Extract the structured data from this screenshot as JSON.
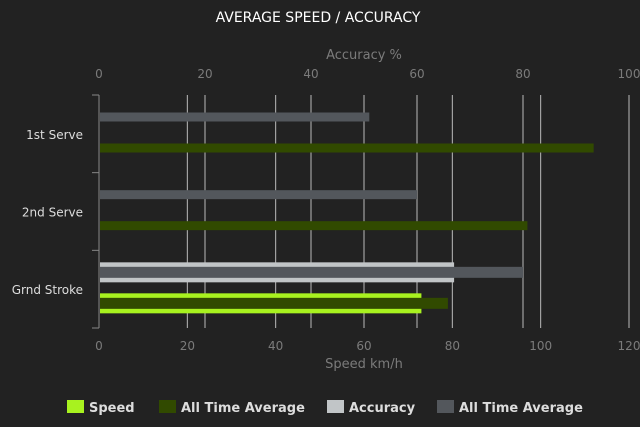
{
  "chart_data": {
    "type": "bar",
    "orientation": "horizontal",
    "title": "AVERAGE SPEED / ACCURACY",
    "categories": [
      "1st Serve",
      "2nd Serve",
      "Grnd Stroke"
    ],
    "x_top": {
      "label": "Accuracy %",
      "range": [
        0,
        100
      ],
      "ticks": [
        0,
        20,
        40,
        60,
        80,
        100
      ]
    },
    "x_bottom": {
      "label": "Speed km/h",
      "range": [
        0,
        120
      ],
      "ticks": [
        0,
        20,
        40,
        60,
        80,
        100,
        120
      ]
    },
    "grid": true,
    "legend_position": "bottom",
    "series": [
      {
        "name": "Speed",
        "axis": "bottom",
        "color": "#a8f21f",
        "values": [
          null,
          null,
          73
        ]
      },
      {
        "name": "All Time Average",
        "axis": "bottom",
        "color": "#314a00",
        "values": [
          112,
          97,
          79
        ]
      },
      {
        "name": "Accuracy",
        "axis": "top",
        "color": "#c1c5c7",
        "values": [
          null,
          null,
          67
        ]
      },
      {
        "name": "All Time Average",
        "axis": "top",
        "color": "#53575c",
        "values": [
          51,
          60,
          80
        ]
      }
    ]
  }
}
